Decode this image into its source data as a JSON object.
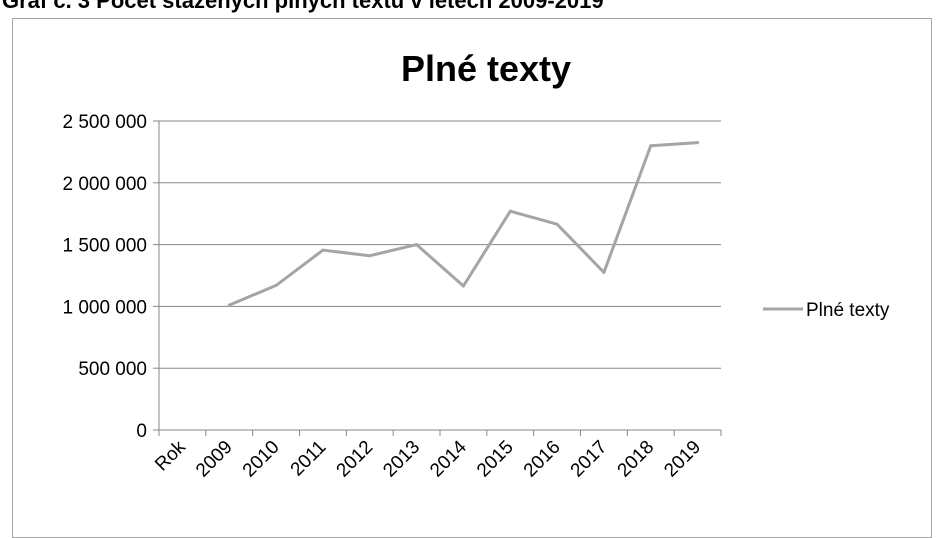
{
  "page": {
    "top_text": "Graf č. 3 Počet stažených plných textů v letech 2009-2019"
  },
  "chart_data": {
    "type": "line",
    "title": "Plné texty",
    "xlabel": "",
    "ylabel": "",
    "categories": [
      "Rok",
      "2009",
      "2010",
      "2011",
      "2012",
      "2013",
      "2014",
      "2015",
      "2016",
      "2017",
      "2018",
      "2019"
    ],
    "y_tick_labels": [
      "0",
      "500 000",
      "1 000 000",
      "1 500 000",
      "2 000 000",
      "2 500 000"
    ],
    "y_ticks": [
      0,
      500000,
      1000000,
      1500000,
      2000000,
      2500000
    ],
    "ylim": [
      0,
      2500000
    ],
    "grid": true,
    "legend_position": "right",
    "series": [
      {
        "name": "Plné texty",
        "color": "#a5a5a5",
        "values": [
          null,
          1010000,
          1170000,
          1455000,
          1410000,
          1500000,
          1165000,
          1770000,
          1665000,
          1275000,
          2300000,
          2325000
        ]
      }
    ]
  }
}
